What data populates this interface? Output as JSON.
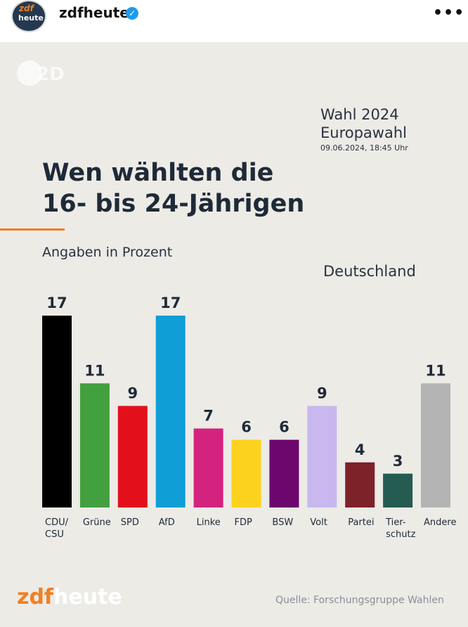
{
  "post": {
    "account": "zdfheute",
    "avatar_top": "zdf",
    "avatar_bottom": "heute",
    "verified_icon": "verified-badge-icon",
    "more_icon": "more-options-icon"
  },
  "graphic": {
    "meta_line1": "Wahl 2024",
    "meta_line2": "Europawahl",
    "meta_date": "09.06.2024, 18:45 Uhr",
    "title_line1": "Wen wählten die",
    "title_line2": "16- bis 24-Jährigen",
    "unit": "Angaben in Prozent",
    "region": "Deutschland",
    "logo_zdf": "zdf",
    "logo_heute": "heute",
    "source": "Quelle: Forschungsgruppe Wahlen",
    "colors": {
      "background": "#ecebe6",
      "accent": "#f07f22"
    }
  },
  "chart_data": {
    "type": "bar",
    "title": "Wen wählten die 16- bis 24-Jährigen",
    "subtitle": "Angaben in Prozent",
    "categories": [
      [
        "CDU/",
        "CSU"
      ],
      [
        "Grüne"
      ],
      [
        "SPD"
      ],
      [
        "AfD"
      ],
      [
        "Linke"
      ],
      [
        "FDP"
      ],
      [
        "BSW"
      ],
      [
        "Volt"
      ],
      [
        "Partei"
      ],
      [
        "Tier-",
        "schutz"
      ],
      [
        "Andere"
      ]
    ],
    "values": [
      17,
      11,
      9,
      17,
      7,
      6,
      6,
      9,
      4,
      3,
      11
    ],
    "colors": [
      "#000000",
      "#43a03e",
      "#e3101c",
      "#0f9ed6",
      "#d4237f",
      "#fdd21f",
      "#6d076e",
      "#c8b8ef",
      "#7d2229",
      "#255c52",
      "#b4b4b4"
    ],
    "ylim": [
      0,
      17
    ],
    "grid": false,
    "legend": "none"
  }
}
